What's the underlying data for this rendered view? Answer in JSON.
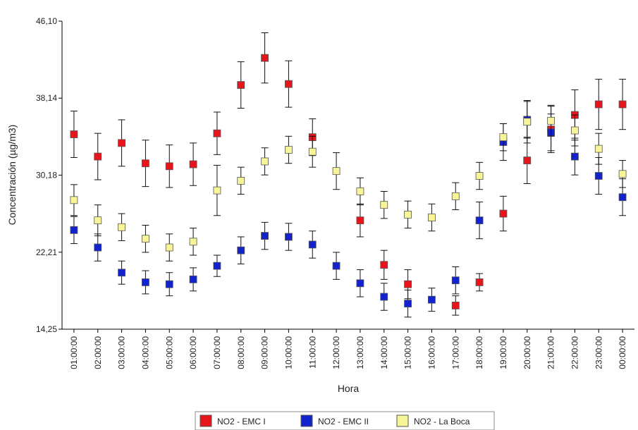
{
  "chart_data": {
    "type": "scatter",
    "xlabel": "Hora",
    "ylabel": "Concentración (µg/m3)",
    "categories": [
      "01:00:00",
      "02:00:00",
      "03:00:00",
      "04:00:00",
      "05:00:00",
      "06:00:00",
      "07:00:00",
      "08:00:00",
      "09:00:00",
      "10:00:00",
      "11:00:00",
      "12:00:00",
      "13:00:00",
      "14:00:00",
      "15:00:00",
      "16:00:00",
      "17:00:00",
      "18:00:00",
      "19:00:00",
      "20:00:00",
      "21:00:00",
      "22:00:00",
      "23:00:00",
      "00:00:00"
    ],
    "yticks": [
      14.25,
      22.21,
      30.18,
      38.14,
      46.1
    ],
    "ytick_labels": [
      "14,25",
      "22,21",
      "30,18",
      "38,14",
      "46,10"
    ],
    "ylim": [
      14.25,
      46.1
    ],
    "grid": false,
    "legend_position": "bottom",
    "series": [
      {
        "name": "NO2 - EMC I",
        "color": "#e8141c",
        "values": [
          34.4,
          32.1,
          33.5,
          31.4,
          31.1,
          31.3,
          34.5,
          39.5,
          42.3,
          39.6,
          34.1,
          null,
          25.5,
          20.9,
          18.9,
          null,
          16.7,
          19.1,
          26.2,
          31.7,
          34.9,
          36.4,
          37.5,
          37.5
        ],
        "errors": [
          2.4,
          2.4,
          2.4,
          2.4,
          2.2,
          2.2,
          2.2,
          2.4,
          2.6,
          2.4,
          1.9,
          null,
          1.7,
          1.5,
          1.5,
          null,
          1.0,
          0.9,
          1.8,
          2.4,
          2.4,
          2.6,
          2.6,
          2.6
        ]
      },
      {
        "name": "NO2 - EMC II",
        "color": "#1222cc",
        "values": [
          24.5,
          22.7,
          20.1,
          19.1,
          18.9,
          19.4,
          20.8,
          22.4,
          23.9,
          23.8,
          23.0,
          20.8,
          19.0,
          17.6,
          16.9,
          17.3,
          19.3,
          25.5,
          33.6,
          35.9,
          34.6,
          32.1,
          30.1,
          27.9
        ],
        "errors": [
          1.4,
          1.4,
          1.2,
          1.2,
          1.2,
          1.2,
          1.1,
          1.4,
          1.4,
          1.4,
          1.4,
          1.4,
          1.4,
          1.4,
          1.4,
          1.2,
          1.4,
          1.9,
          1.9,
          1.9,
          1.9,
          1.9,
          1.9,
          1.9
        ]
      },
      {
        "name": "NO2 - La Boca",
        "color": "#f7f598",
        "values": [
          27.6,
          25.5,
          24.8,
          23.6,
          22.7,
          23.3,
          28.6,
          29.6,
          31.6,
          32.8,
          32.6,
          30.6,
          28.5,
          27.1,
          26.1,
          25.8,
          28.0,
          30.1,
          34.1,
          35.7,
          35.8,
          34.8,
          32.9,
          30.3
        ],
        "errors": [
          1.6,
          1.6,
          1.4,
          1.4,
          1.4,
          1.4,
          2.6,
          1.4,
          1.4,
          1.4,
          1.6,
          1.9,
          1.4,
          1.4,
          1.4,
          1.4,
          1.4,
          1.4,
          1.4,
          2.2,
          1.6,
          1.6,
          1.6,
          1.4
        ]
      }
    ]
  }
}
